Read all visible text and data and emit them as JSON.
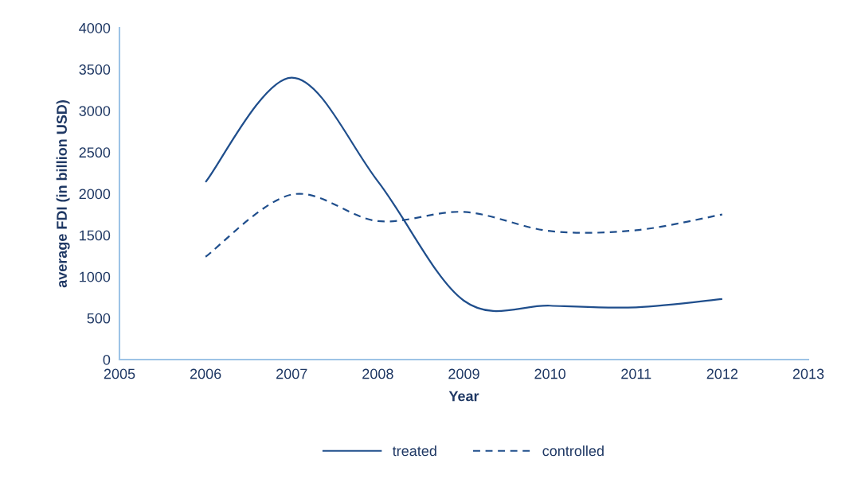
{
  "chart_data": {
    "type": "line",
    "xlabel": "Year",
    "ylabel": "average FDI (in billion USD)",
    "x": [
      2006,
      2007,
      2008,
      2009,
      2010,
      2011,
      2012
    ],
    "series": [
      {
        "name": "treated",
        "color": "#1f4e8c",
        "line_style": "solid",
        "values": [
          2140,
          3400,
          2150,
          710,
          650,
          630,
          730
        ]
      },
      {
        "name": "controlled",
        "color": "#1f4e8c",
        "line_style": "dashed",
        "values": [
          1240,
          1990,
          1670,
          1780,
          1550,
          1560,
          1750
        ]
      }
    ],
    "xlim": [
      2005,
      2013
    ],
    "xticks": [
      2005,
      2006,
      2007,
      2008,
      2009,
      2010,
      2011,
      2012,
      2013
    ],
    "ylim": [
      0,
      4000
    ],
    "yticks": [
      0,
      500,
      1000,
      1500,
      2000,
      2500,
      3000,
      3500,
      4000
    ],
    "grid": false,
    "legend": "bottom",
    "marker": "none"
  }
}
